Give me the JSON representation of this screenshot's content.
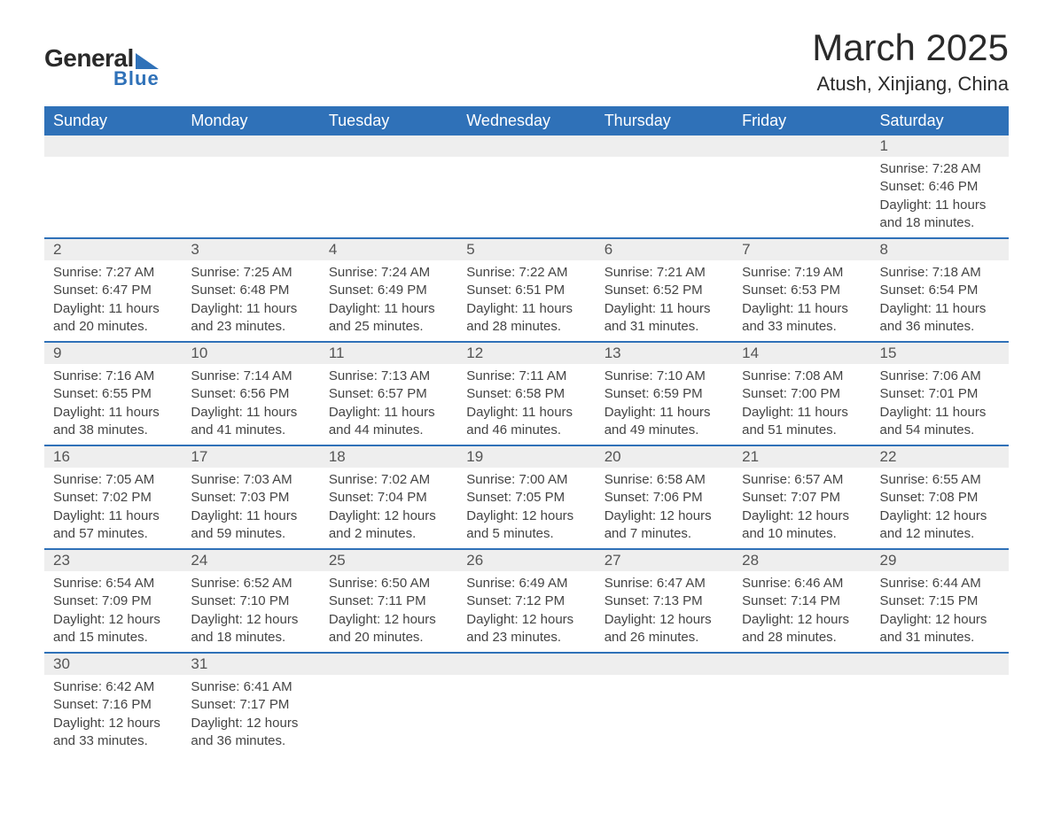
{
  "logo": {
    "general": "General",
    "blue": "Blue"
  },
  "title": {
    "month": "March 2025",
    "location": "Atush, Xinjiang, China"
  },
  "colors": {
    "header_bg": "#2f71b8",
    "header_text": "#ffffff",
    "daynum_bg": "#eeeeee",
    "daynum_text": "#555555",
    "detail_text": "#444444",
    "border": "#2f71b8",
    "logo_dark": "#2a2a2a",
    "logo_blue": "#2f71b8",
    "page_bg": "#ffffff"
  },
  "typography": {
    "title_fontsize": 42,
    "location_fontsize": 22,
    "header_fontsize": 18,
    "daynum_fontsize": 17,
    "detail_fontsize": 15,
    "font_family": "Arial"
  },
  "weekdays": [
    "Sunday",
    "Monday",
    "Tuesday",
    "Wednesday",
    "Thursday",
    "Friday",
    "Saturday"
  ],
  "weeks": [
    {
      "nums": [
        "",
        "",
        "",
        "",
        "",
        "",
        "1"
      ],
      "details": [
        "",
        "",
        "",
        "",
        "",
        "",
        "Sunrise: 7:28 AM\nSunset: 6:46 PM\nDaylight: 11 hours and 18 minutes."
      ]
    },
    {
      "nums": [
        "2",
        "3",
        "4",
        "5",
        "6",
        "7",
        "8"
      ],
      "details": [
        "Sunrise: 7:27 AM\nSunset: 6:47 PM\nDaylight: 11 hours and 20 minutes.",
        "Sunrise: 7:25 AM\nSunset: 6:48 PM\nDaylight: 11 hours and 23 minutes.",
        "Sunrise: 7:24 AM\nSunset: 6:49 PM\nDaylight: 11 hours and 25 minutes.",
        "Sunrise: 7:22 AM\nSunset: 6:51 PM\nDaylight: 11 hours and 28 minutes.",
        "Sunrise: 7:21 AM\nSunset: 6:52 PM\nDaylight: 11 hours and 31 minutes.",
        "Sunrise: 7:19 AM\nSunset: 6:53 PM\nDaylight: 11 hours and 33 minutes.",
        "Sunrise: 7:18 AM\nSunset: 6:54 PM\nDaylight: 11 hours and 36 minutes."
      ]
    },
    {
      "nums": [
        "9",
        "10",
        "11",
        "12",
        "13",
        "14",
        "15"
      ],
      "details": [
        "Sunrise: 7:16 AM\nSunset: 6:55 PM\nDaylight: 11 hours and 38 minutes.",
        "Sunrise: 7:14 AM\nSunset: 6:56 PM\nDaylight: 11 hours and 41 minutes.",
        "Sunrise: 7:13 AM\nSunset: 6:57 PM\nDaylight: 11 hours and 44 minutes.",
        "Sunrise: 7:11 AM\nSunset: 6:58 PM\nDaylight: 11 hours and 46 minutes.",
        "Sunrise: 7:10 AM\nSunset: 6:59 PM\nDaylight: 11 hours and 49 minutes.",
        "Sunrise: 7:08 AM\nSunset: 7:00 PM\nDaylight: 11 hours and 51 minutes.",
        "Sunrise: 7:06 AM\nSunset: 7:01 PM\nDaylight: 11 hours and 54 minutes."
      ]
    },
    {
      "nums": [
        "16",
        "17",
        "18",
        "19",
        "20",
        "21",
        "22"
      ],
      "details": [
        "Sunrise: 7:05 AM\nSunset: 7:02 PM\nDaylight: 11 hours and 57 minutes.",
        "Sunrise: 7:03 AM\nSunset: 7:03 PM\nDaylight: 11 hours and 59 minutes.",
        "Sunrise: 7:02 AM\nSunset: 7:04 PM\nDaylight: 12 hours and 2 minutes.",
        "Sunrise: 7:00 AM\nSunset: 7:05 PM\nDaylight: 12 hours and 5 minutes.",
        "Sunrise: 6:58 AM\nSunset: 7:06 PM\nDaylight: 12 hours and 7 minutes.",
        "Sunrise: 6:57 AM\nSunset: 7:07 PM\nDaylight: 12 hours and 10 minutes.",
        "Sunrise: 6:55 AM\nSunset: 7:08 PM\nDaylight: 12 hours and 12 minutes."
      ]
    },
    {
      "nums": [
        "23",
        "24",
        "25",
        "26",
        "27",
        "28",
        "29"
      ],
      "details": [
        "Sunrise: 6:54 AM\nSunset: 7:09 PM\nDaylight: 12 hours and 15 minutes.",
        "Sunrise: 6:52 AM\nSunset: 7:10 PM\nDaylight: 12 hours and 18 minutes.",
        "Sunrise: 6:50 AM\nSunset: 7:11 PM\nDaylight: 12 hours and 20 minutes.",
        "Sunrise: 6:49 AM\nSunset: 7:12 PM\nDaylight: 12 hours and 23 minutes.",
        "Sunrise: 6:47 AM\nSunset: 7:13 PM\nDaylight: 12 hours and 26 minutes.",
        "Sunrise: 6:46 AM\nSunset: 7:14 PM\nDaylight: 12 hours and 28 minutes.",
        "Sunrise: 6:44 AM\nSunset: 7:15 PM\nDaylight: 12 hours and 31 minutes."
      ]
    },
    {
      "nums": [
        "30",
        "31",
        "",
        "",
        "",
        "",
        ""
      ],
      "details": [
        "Sunrise: 6:42 AM\nSunset: 7:16 PM\nDaylight: 12 hours and 33 minutes.",
        "Sunrise: 6:41 AM\nSunset: 7:17 PM\nDaylight: 12 hours and 36 minutes.",
        "",
        "",
        "",
        "",
        ""
      ]
    }
  ]
}
